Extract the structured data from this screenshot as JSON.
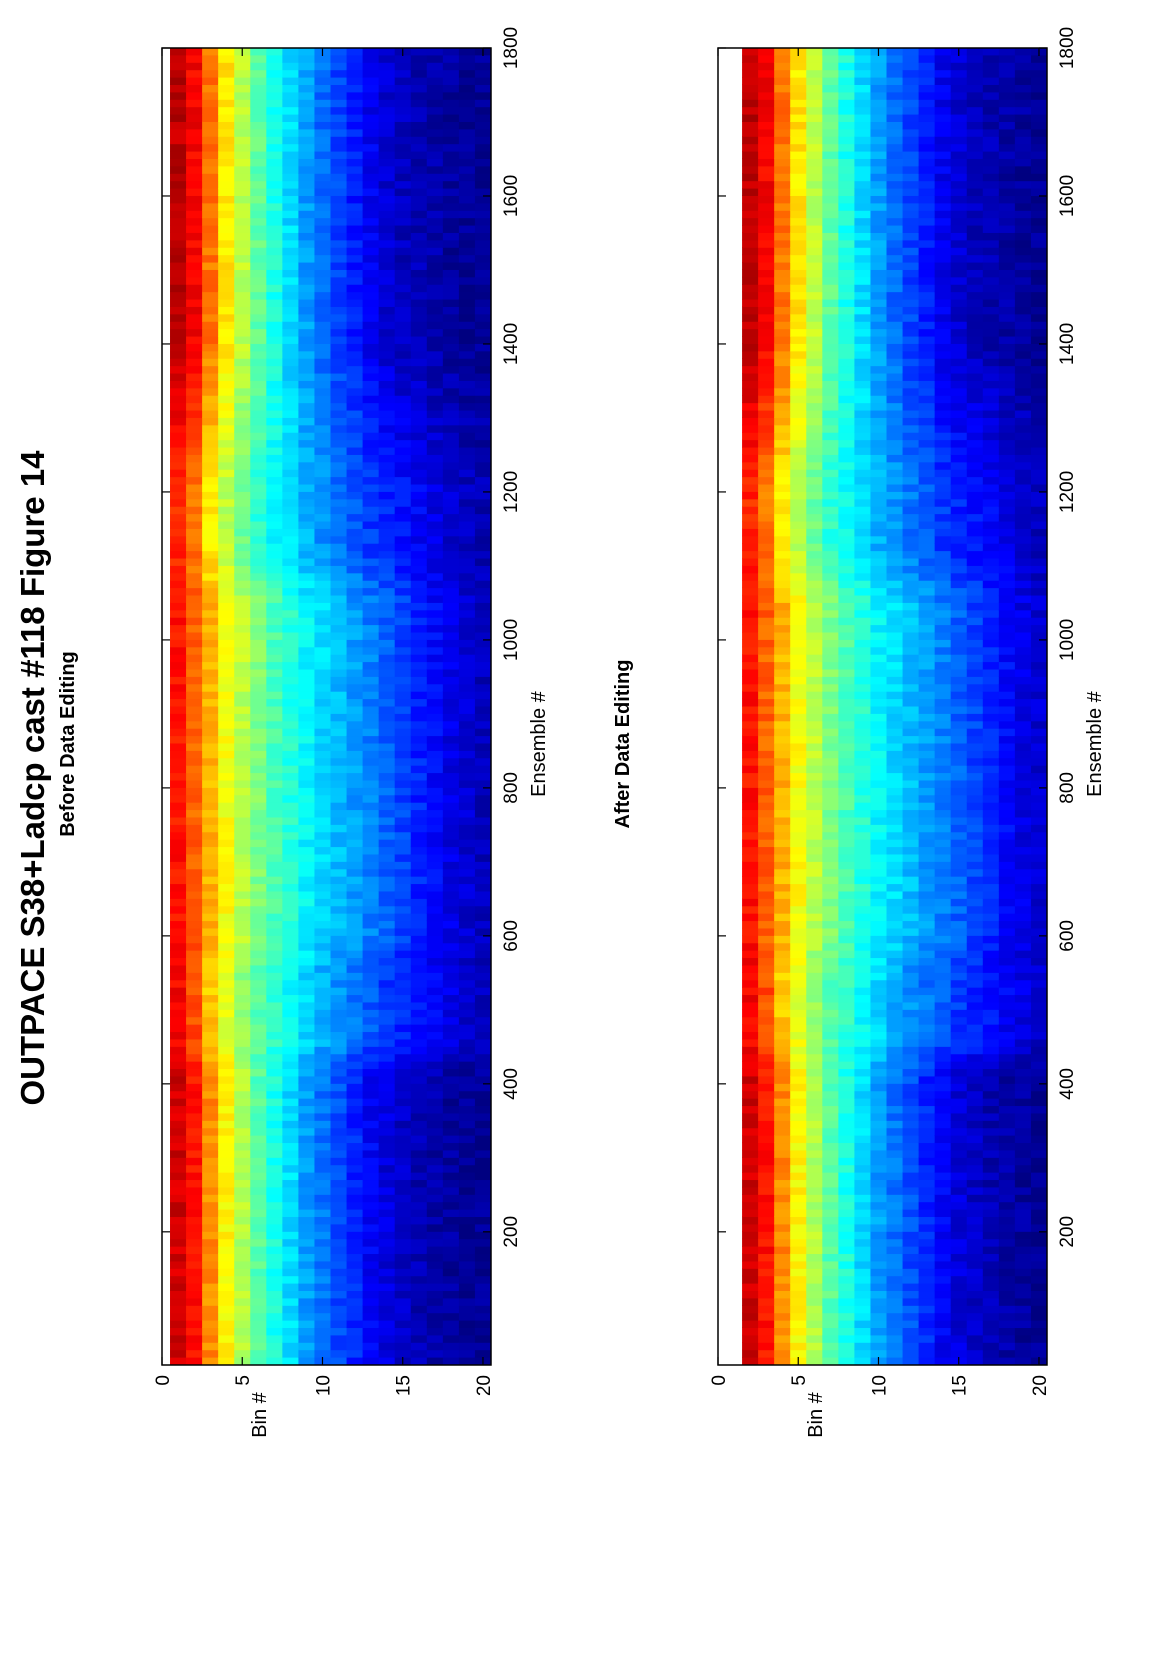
{
  "figure": {
    "title": "OUTPACE S38+Ladcp cast #118  Figure 14"
  },
  "colors": {
    "colormap": "jet",
    "colormap_stops": [
      "#00008f",
      "#0000ff",
      "#00ffff",
      "#ffff00",
      "#ff0000",
      "#800000"
    ],
    "flag_color": "#a0a0d8",
    "frame": "#000000"
  },
  "chart_data": [
    {
      "type": "heatmap",
      "title": "Before Data Editing",
      "xlabel": "Ensemble #",
      "ylabel": "Bin #",
      "xlim": [
        20,
        1800
      ],
      "ylim": [
        0,
        20.5
      ],
      "xticks": [
        200,
        400,
        600,
        800,
        1000,
        1200,
        1400,
        1600,
        1800
      ],
      "yticks": [
        0,
        5,
        10,
        15,
        20
      ],
      "y_reversed": true,
      "first_bin": 1,
      "last_bin": 20,
      "colormap": "jet",
      "grid": false,
      "level_profile_bins": [
        1,
        2,
        3,
        4,
        5,
        6,
        7,
        8,
        9,
        10,
        11,
        12,
        13,
        14,
        15,
        16,
        17,
        18,
        19,
        20
      ],
      "level_profile_segments": [
        {
          "ensemble_range": [
            20,
            410
          ],
          "levels": [
            0.92,
            0.86,
            0.74,
            0.63,
            0.55,
            0.46,
            0.4,
            0.34,
            0.28,
            0.24,
            0.2,
            0.16,
            0.12,
            0.09,
            0.07,
            0.05,
            0.04,
            0.03,
            0.02,
            0.02
          ]
        },
        {
          "ensemble_range": [
            460,
            560
          ],
          "levels": [
            0.88,
            0.8,
            0.68,
            0.6,
            0.52,
            0.46,
            0.42,
            0.38,
            0.34,
            0.3,
            0.27,
            0.24,
            0.21,
            0.18,
            0.16,
            0.14,
            0.12,
            0.1,
            0.08,
            0.06
          ]
        },
        {
          "ensemble_range": [
            600,
            1050
          ],
          "levels": [
            0.86,
            0.78,
            0.7,
            0.62,
            0.56,
            0.5,
            0.45,
            0.41,
            0.37,
            0.34,
            0.31,
            0.28,
            0.25,
            0.22,
            0.19,
            0.16,
            0.13,
            0.1,
            0.08,
            0.06
          ]
        },
        {
          "ensemble_range": [
            1120,
            1200
          ],
          "levels": [
            0.84,
            0.76,
            0.64,
            0.56,
            0.48,
            0.42,
            0.38,
            0.34,
            0.3,
            0.27,
            0.24,
            0.21,
            0.18,
            0.16,
            0.14,
            0.12,
            0.1,
            0.08,
            0.06,
            0.05
          ]
        },
        {
          "ensemble_range": [
            1400,
            1800
          ],
          "levels": [
            0.94,
            0.88,
            0.76,
            0.65,
            0.56,
            0.47,
            0.4,
            0.34,
            0.28,
            0.23,
            0.19,
            0.15,
            0.11,
            0.08,
            0.06,
            0.05,
            0.04,
            0.03,
            0.02,
            0.02
          ]
        }
      ]
    },
    {
      "type": "heatmap",
      "title": "After Data Editing",
      "xlabel": "Ensemble #",
      "ylabel": "Bin #",
      "xlim": [
        20,
        1800
      ],
      "ylim": [
        0,
        20.5
      ],
      "xticks": [
        200,
        400,
        600,
        800,
        1000,
        1200,
        1400,
        1600,
        1800
      ],
      "yticks": [
        0,
        5,
        10,
        15,
        20
      ],
      "y_reversed": true,
      "first_bin": 2,
      "last_bin": 20,
      "colormap": "jet",
      "grid": false,
      "level_profile_bins": [
        2,
        3,
        4,
        5,
        6,
        7,
        8,
        9,
        10,
        11,
        12,
        13,
        14,
        15,
        16,
        17,
        18,
        19,
        20
      ],
      "level_profile_segments": [
        {
          "ensemble_range": [
            20,
            410
          ],
          "levels": [
            0.92,
            0.86,
            0.74,
            0.63,
            0.55,
            0.46,
            0.4,
            0.34,
            0.28,
            0.24,
            0.2,
            0.16,
            0.12,
            0.09,
            0.07,
            0.05,
            0.04,
            0.03,
            0.02
          ]
        },
        {
          "ensemble_range": [
            460,
            560
          ],
          "levels": [
            0.88,
            0.8,
            0.68,
            0.6,
            0.52,
            0.46,
            0.42,
            0.38,
            0.34,
            0.3,
            0.27,
            0.24,
            0.21,
            0.18,
            0.16,
            0.14,
            0.12,
            0.1,
            0.08
          ]
        },
        {
          "ensemble_range": [
            600,
            1050
          ],
          "levels": [
            0.86,
            0.78,
            0.7,
            0.62,
            0.56,
            0.5,
            0.45,
            0.41,
            0.37,
            0.34,
            0.31,
            0.28,
            0.25,
            0.22,
            0.19,
            0.16,
            0.13,
            0.1,
            0.08
          ]
        },
        {
          "ensemble_range": [
            1120,
            1200
          ],
          "levels": [
            0.84,
            0.76,
            0.64,
            0.56,
            0.48,
            0.42,
            0.38,
            0.34,
            0.3,
            0.27,
            0.24,
            0.21,
            0.18,
            0.16,
            0.14,
            0.12,
            0.1,
            0.08,
            0.06
          ]
        },
        {
          "ensemble_range": [
            1400,
            1800
          ],
          "levels": [
            0.94,
            0.88,
            0.76,
            0.65,
            0.56,
            0.47,
            0.4,
            0.34,
            0.28,
            0.23,
            0.19,
            0.15,
            0.11,
            0.08,
            0.06,
            0.05,
            0.04,
            0.03,
            0.02
          ]
        }
      ]
    }
  ]
}
